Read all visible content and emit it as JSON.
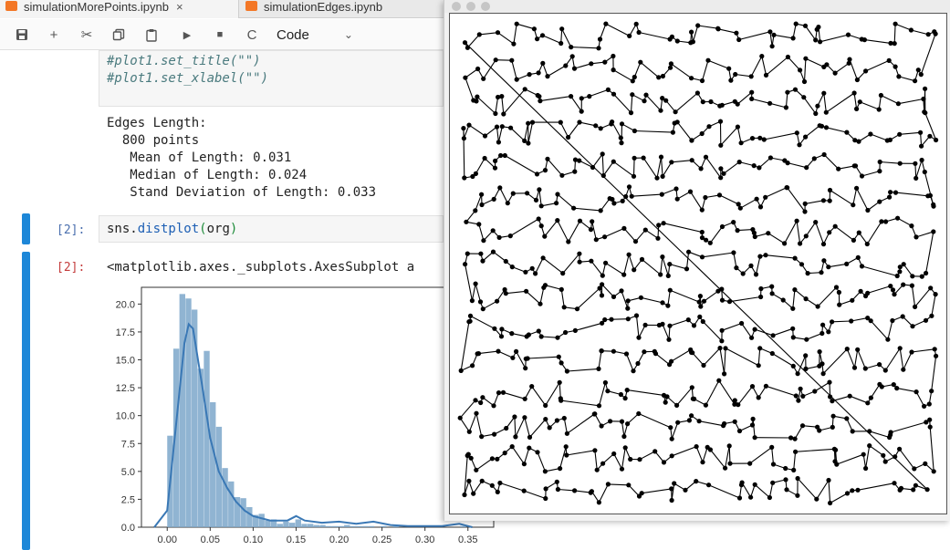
{
  "tabs": [
    {
      "label": "simulationMorePoints.ipynb",
      "close": "×"
    },
    {
      "label": "simulationEdges.ipynb"
    }
  ],
  "toolbar": {
    "buttons": [
      {
        "icon": "save-icon",
        "glyph": "🖫"
      },
      {
        "icon": "plus-icon",
        "glyph": "+"
      },
      {
        "icon": "scissors-icon",
        "glyph": "✂"
      },
      {
        "icon": "copy-icon",
        "glyph": "⧉"
      },
      {
        "icon": "paste-icon",
        "glyph": "📋"
      },
      {
        "icon": "run-icon",
        "glyph": "▶"
      },
      {
        "icon": "stop-icon",
        "glyph": "■"
      },
      {
        "icon": "restart-icon",
        "glyph": "C"
      }
    ],
    "cell_type": "Code",
    "chevron": "⌄"
  },
  "cells": {
    "code_top": {
      "lines": [
        "#plot1.set_title(\"\")",
        "#plot1.set_xlabel(\"\")"
      ]
    },
    "output_text": {
      "lines": [
        "Edges Length:",
        "  800 points",
        "   Mean of Length: 0.031",
        "   Median of Length: 0.024",
        "   Stand Deviation of Length: 0.033"
      ]
    },
    "in2": {
      "prompt": "[2]:",
      "code": {
        "obj": "sns.",
        "fn": "distplot",
        "open": "(",
        "arg": "org",
        "close": ")"
      }
    },
    "out2": {
      "prompt": "[2]:",
      "text": "<matplotlib.axes._subplots.AxesSubplot a"
    }
  },
  "chart_data": {
    "type": "bar",
    "title": "",
    "xlabel": "",
    "ylabel": "",
    "xlim": [
      -0.03,
      0.38
    ],
    "ylim": [
      0,
      21.5
    ],
    "xticks": [
      "0.00",
      "0.05",
      "0.10",
      "0.15",
      "0.20",
      "0.25",
      "0.30",
      "0.35"
    ],
    "yticks": [
      "0.0",
      "2.5",
      "5.0",
      "7.5",
      "10.0",
      "12.5",
      "15.0",
      "17.5",
      "20.0"
    ],
    "bin_width": 0.0071,
    "bin_start": 0.0,
    "hist_values": [
      8.2,
      16.0,
      20.9,
      20.5,
      19.5,
      14.2,
      15.8,
      11.2,
      9.0,
      5.3,
      4.1,
      2.7,
      2.6,
      1.8,
      1.1,
      1.2,
      0.6,
      0.7,
      0.3,
      0.5,
      0.4,
      0.7,
      0.3,
      0.3,
      0.2,
      0.2,
      0.1,
      0.1,
      0.1,
      0.2,
      0.1,
      0.1,
      0.1,
      0.1,
      0.0,
      0.1,
      0.0,
      0.1,
      0.0,
      0.0,
      0.0,
      0.0,
      0.0,
      0.0,
      0.0,
      0.0,
      0.0,
      0.0,
      0.1
    ],
    "kde": {
      "x": [
        -0.015,
        0.0,
        0.01,
        0.02,
        0.025,
        0.03,
        0.04,
        0.05,
        0.06,
        0.07,
        0.08,
        0.09,
        0.1,
        0.12,
        0.14,
        0.15,
        0.16,
        0.18,
        0.2,
        0.22,
        0.24,
        0.26,
        0.28,
        0.3,
        0.32,
        0.34,
        0.355
      ],
      "y": [
        0.0,
        1.5,
        9.0,
        16.5,
        18.2,
        17.8,
        13.0,
        8.0,
        5.0,
        3.5,
        2.3,
        1.5,
        1.0,
        0.6,
        0.6,
        1.0,
        0.6,
        0.4,
        0.5,
        0.3,
        0.5,
        0.2,
        0.1,
        0.1,
        0.1,
        0.3,
        0.0
      ]
    },
    "colors": {
      "bars": "#7da7ca",
      "kde": "#3a78b5",
      "axis": "#333333"
    }
  },
  "figure": {
    "type": "scatter-path",
    "markers": "filled black circles joined by line segments in visiting order",
    "path_color": "#000000",
    "background": "#ffffff"
  }
}
